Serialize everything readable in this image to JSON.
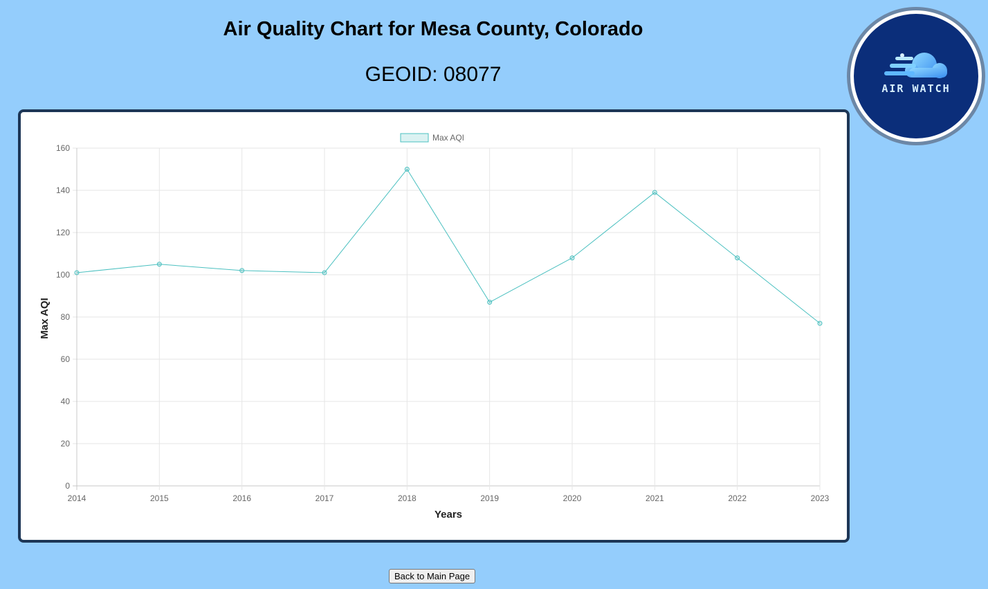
{
  "page": {
    "title": "Air Quality Chart for Mesa County, Colorado",
    "geoid": "GEOID: 08077",
    "back_button": "Back to Main Page"
  },
  "logo": {
    "text": "AIR WATCH",
    "colors": {
      "outer": "#6c87a6",
      "ring": "#ffffff",
      "inner": "#0b2e7a",
      "cloud": "#4ab0f5",
      "text": "#d8f0ff"
    }
  },
  "chart_data": {
    "type": "line",
    "categories": [
      "2014",
      "2015",
      "2016",
      "2017",
      "2018",
      "2019",
      "2020",
      "2021",
      "2022",
      "2023"
    ],
    "series": [
      {
        "name": "Max AQI",
        "values": [
          101,
          105,
          102,
          101,
          150,
          87,
          108,
          139,
          108,
          77
        ],
        "color": "#4bc0c0"
      }
    ],
    "title": "",
    "xlabel": "Years",
    "ylabel": "Max AQI",
    "ylim": [
      0,
      160
    ],
    "yticks": [
      0,
      20,
      40,
      60,
      80,
      100,
      120,
      140,
      160
    ],
    "grid": true,
    "legend": "top-center"
  }
}
